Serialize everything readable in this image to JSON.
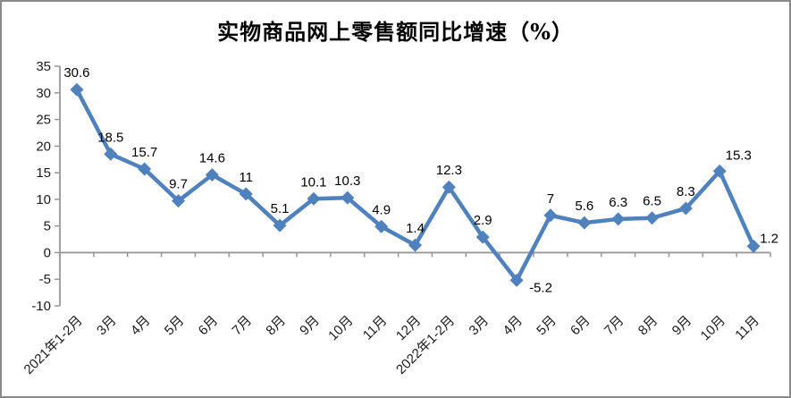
{
  "figure": {
    "title": "实物商品网上零售额同比增速（%）"
  },
  "chart_data": {
    "type": "line",
    "title": "实物商品网上零售额同比增速（%）",
    "categories": [
      "2021年1-2月",
      "3月",
      "4月",
      "5月",
      "6月",
      "7月",
      "8月",
      "9月",
      "10月",
      "11月",
      "12月",
      "2022年1-2月",
      "3月",
      "4月",
      "5月",
      "6月",
      "7月",
      "8月",
      "9月",
      "10月",
      "11月"
    ],
    "values": [
      30.6,
      18.5,
      15.7,
      9.7,
      14.6,
      11,
      5.1,
      10.1,
      10.3,
      4.9,
      1.4,
      12.3,
      2.9,
      -5.2,
      7,
      5.6,
      6.3,
      6.5,
      8.3,
      15.3,
      1.2
    ],
    "data_labels": [
      "30.6",
      "18.5",
      "15.7",
      "9.7",
      "14.6",
      "11",
      "5.1",
      "10.1",
      "10.3",
      "4.9",
      "1.4",
      "12.3",
      "2.9",
      "-5.2",
      "7",
      "5.6",
      "6.3",
      "6.5",
      "8.3",
      "15.3",
      "1.2"
    ],
    "xlabel": "",
    "ylabel": "",
    "ylim": [
      -10,
      35
    ],
    "yticks": [
      35,
      30,
      25,
      20,
      15,
      10,
      5,
      0,
      -5,
      -10
    ],
    "grid": false,
    "legend_position": "none",
    "marker_shape": "diamond",
    "line_color": "#4f81bd",
    "axis_color": "#979797",
    "text_color": "#1a1a1a",
    "border_color": "#8a8a8a"
  }
}
